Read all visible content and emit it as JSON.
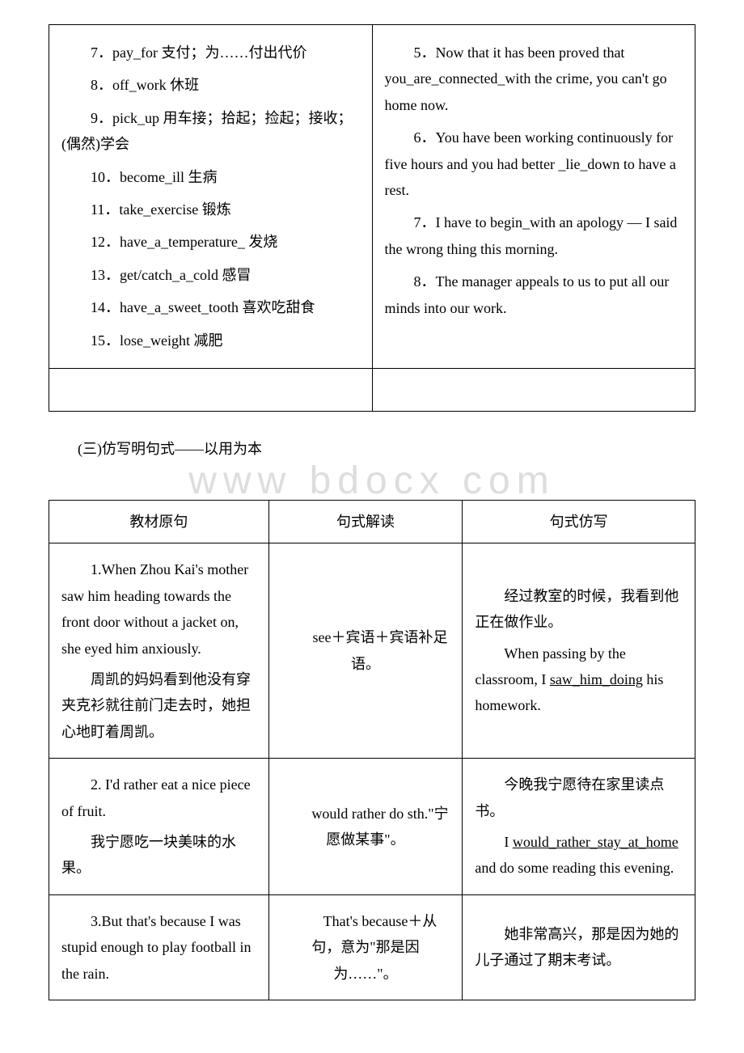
{
  "topTable": {
    "leftCol": [
      "7．pay_for 支付；为……付出代价",
      "8．off_work 休班",
      "9．pick_up 用车接；拾起；捡起；接收；(偶然)学会",
      "10．become_ill 生病",
      "11．take_exercise 锻炼",
      "12．have_a_temperature_ 发烧",
      "13．get/catch_a_cold 感冒",
      "14．have_a_sweet_tooth 喜欢吃甜食",
      "15．lose_weight 减肥"
    ],
    "rightCol": [
      "5．Now that it has been proved that you_are_connected_with the crime, you can't go home now.",
      "6．You have been working continuously for five hours and you had better _lie_down to have a rest.",
      "7．I have to begin_with an apology — I said the wrong thing this morning.",
      "8．The manager appeals to us to put all our minds into our work."
    ]
  },
  "sectionTitle": "(三)仿写明句式——以用为本",
  "watermark": "www bdocx com",
  "bottomTable": {
    "headers": [
      "教材原句",
      "句式解读",
      "句式仿写"
    ],
    "rows": [
      {
        "col1": {
          "para1": "1.When Zhou Kai's mother saw him heading towards the front door without a jacket on, she eyed him anxiously.",
          "para2": "周凯的妈妈看到他没有穿夹克衫就往前门走去时，她担心地盯着周凯。"
        },
        "col2": "see＋宾语＋宾语补足语。",
        "col3": {
          "para1": "经过教室的时候，我看到他正在做作业。",
          "para2_pre": "When passing by the classroom, I ",
          "para2_u": "saw_him_doing",
          "para2_post": " his homework."
        }
      },
      {
        "col1": {
          "para1": "2. I'd rather eat a nice piece of fruit.",
          "para2": "我宁愿吃一块美味的水果。"
        },
        "col2": "would rather do sth.\"宁愿做某事\"。",
        "col3": {
          "para1": "今晚我宁愿待在家里读点书。",
          "para2_pre": "I ",
          "para2_u": "would_rather_stay_at_home",
          "para2_post": " and do some reading this evening."
        }
      },
      {
        "col1": {
          "para1": "3.But that's because I was stupid enough to play football in the rain."
        },
        "col2": "That's because＋从句，意为\"那是因为……\"。",
        "col3": {
          "para1": "她非常高兴，那是因为她的儿子通过了期末考试。"
        }
      }
    ]
  }
}
